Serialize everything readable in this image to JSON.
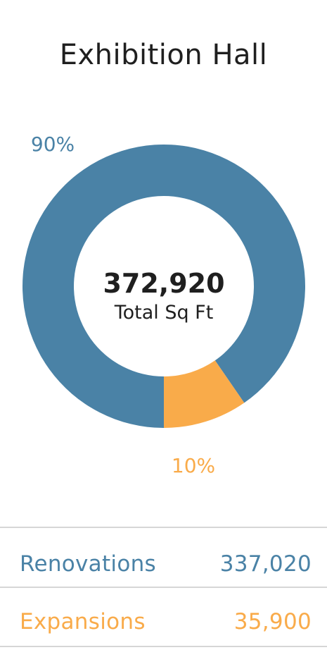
{
  "chart_data": {
    "type": "pie",
    "title": "Exhibition Hall",
    "center_total": "372,920",
    "center_caption": "Total Sq Ft",
    "slices": [
      {
        "label": "Renovations",
        "value": 337020,
        "display_value": "337,020",
        "percent_label": "90%",
        "color": "#4a82a6"
      },
      {
        "label": "Expansions",
        "value": 35900,
        "display_value": "35,900",
        "percent_label": "10%",
        "color": "#f9ab4a"
      }
    ]
  }
}
